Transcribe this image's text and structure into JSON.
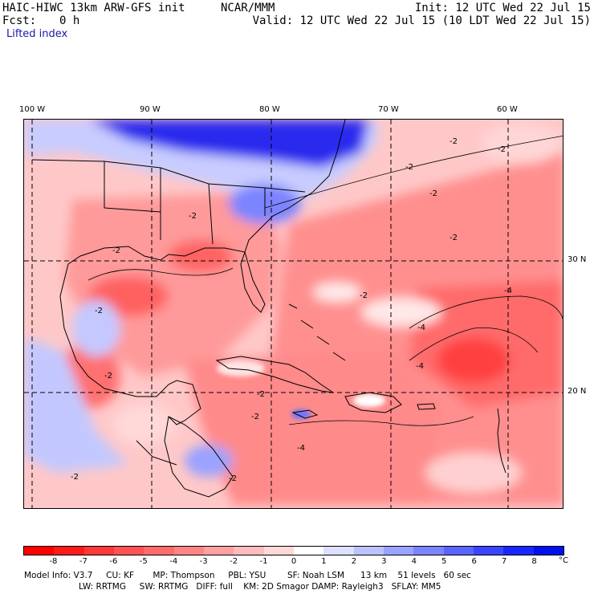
{
  "header": {
    "model": "HAIC-HIWC 13km ARW-GFS init",
    "org": "NCAR/MMM",
    "init": "Init: 12 UTC Wed 22 Jul 15",
    "fcst_label": "Fcst:",
    "fcst_value": "0 h",
    "valid": "Valid: 12 UTC Wed 22 Jul 15 (10 LDT Wed 22 Jul 15)",
    "field": "Lifted index"
  },
  "map": {
    "lon_labels": [
      "100 W",
      "90 W",
      "80 W",
      "70 W",
      "60 W"
    ],
    "lat_labels": [
      "30 N",
      "20 N"
    ],
    "contour_labels": [
      "-2",
      "-2",
      "-2",
      "-2",
      "-2",
      "-2",
      "-2",
      "-2",
      "-2",
      "-2",
      "-4",
      "-4",
      "-4",
      "-4",
      "-2",
      "-2",
      "-2",
      "-2"
    ],
    "colors": {
      "strong_neg": "#ff3030",
      "mid_neg": "#ff8a8a",
      "weak_neg": "#ffc4c4",
      "neutral": "#ffffff",
      "weak_pos": "#b8c0ff",
      "strong_pos": "#1010ee"
    }
  },
  "colorbar": {
    "ticks": [
      "-8",
      "-7",
      "-6",
      "-5",
      "-4",
      "-3",
      "-2",
      "-1",
      "0",
      "1",
      "2",
      "3",
      "4",
      "5",
      "6",
      "7",
      "8"
    ],
    "unit": "°C",
    "colors": [
      "#ff0000",
      "#ff1a1a",
      "#ff3838",
      "#ff5252",
      "#ff6b6b",
      "#ff8585",
      "#ffa0a0",
      "#ffbcbc",
      "#ffd8d8",
      "#ffffff",
      "#dde0ff",
      "#bcc2ff",
      "#9aa3ff",
      "#7a84ff",
      "#5a64ff",
      "#3a45ff",
      "#1a26ff",
      "#0010ee"
    ]
  },
  "info": {
    "line1": "Model Info: V3.7     CU: KF       MP: Thompson     PBL: YSU        SF: Noah LSM      13 km    51 levels   60 sec",
    "line2": "LW: RRTMG     SW: RRTMG   DIFF: full    KM: 2D Smagor DAMP: Rayleigh3   SFLAY: MM5"
  }
}
